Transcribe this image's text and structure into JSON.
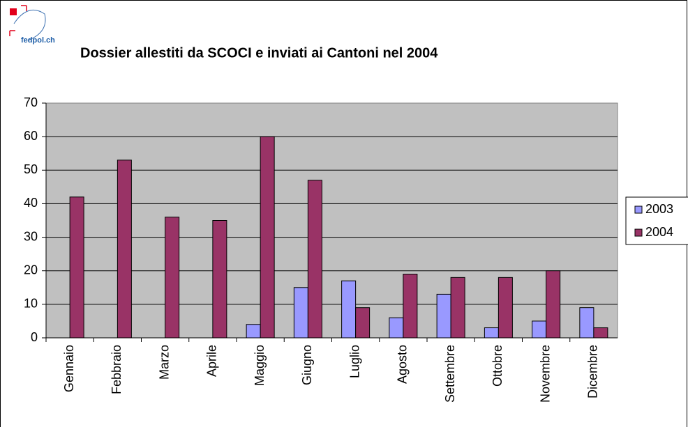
{
  "logo": "fedpol.ch",
  "chart_data": {
    "type": "bar",
    "title": "Dossier allestiti da SCOCI e inviati ai Cantoni nel 2004",
    "categories": [
      "Gennaio",
      "Febbraio",
      "Marzo",
      "Aprile",
      "Maggio",
      "Giugno",
      "Luglio",
      "Agosto",
      "Settembre",
      "Ottobre",
      "Novembre",
      "Dicembre"
    ],
    "series": [
      {
        "name": "2003",
        "color": "#9999ff",
        "values": [
          null,
          null,
          null,
          null,
          4,
          15,
          17,
          6,
          13,
          3,
          5,
          9
        ]
      },
      {
        "name": "2004",
        "color": "#993366",
        "values": [
          42,
          53,
          36,
          35,
          60,
          47,
          9,
          19,
          18,
          18,
          20,
          3
        ]
      }
    ],
    "ylim": [
      0,
      70
    ],
    "yticks": [
      0,
      10,
      20,
      30,
      40,
      50,
      60,
      70
    ],
    "grid": true,
    "legend": "right"
  }
}
